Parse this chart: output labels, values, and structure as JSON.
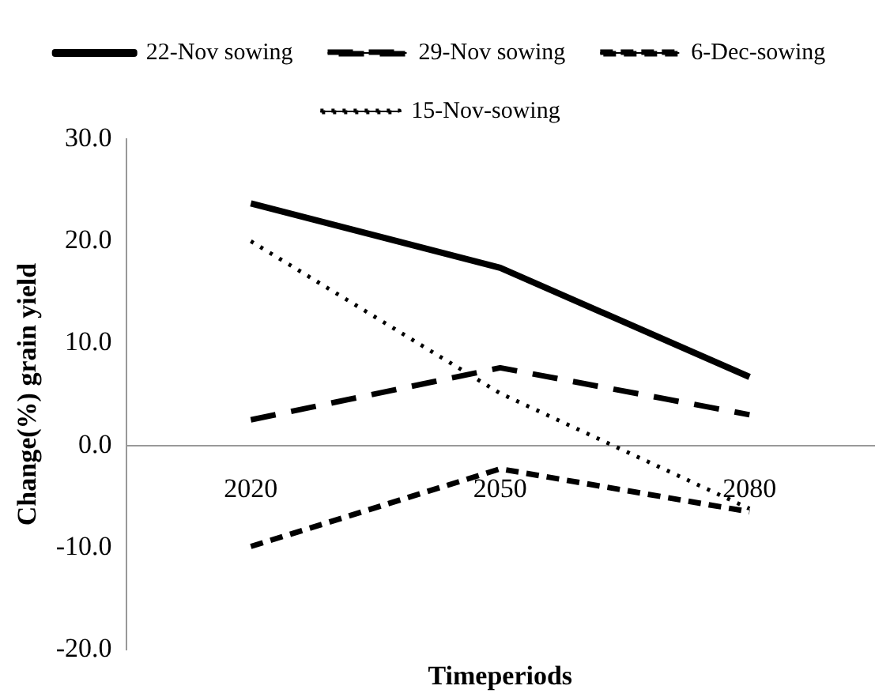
{
  "chart_data": {
    "type": "line",
    "xlabel": "Timeperiods",
    "ylabel": "Change(%) grain yield",
    "categories": [
      "2020",
      "2050",
      "2080"
    ],
    "series": [
      {
        "name": "22-Nov sowing",
        "color": "#000000",
        "line_style": "solid",
        "values": [
          23.7,
          17.4,
          6.7
        ]
      },
      {
        "name": "29-Nov sowing",
        "color": "#000000",
        "line_style": "dashed",
        "values": [
          2.5,
          7.6,
          3.0
        ]
      },
      {
        "name": "6-Dec-sowing",
        "color": "#000000",
        "line_style": "dashed-short",
        "values": [
          -9.9,
          -2.3,
          -6.5
        ]
      },
      {
        "name": "15-Nov-sowing",
        "color": "#000000",
        "line_style": "dotted",
        "values": [
          20.0,
          5.1,
          -6.2
        ]
      }
    ],
    "ylim": [
      -20,
      30
    ],
    "yticks": [
      {
        "value": -20,
        "label": "-20.0"
      },
      {
        "value": -10,
        "label": "-10.0"
      },
      {
        "value": 0,
        "label": "0.0"
      },
      {
        "value": 10,
        "label": "10.0"
      },
      {
        "value": 20,
        "label": "20.0"
      },
      {
        "value": 30,
        "label": "30.0"
      }
    ],
    "grid": false,
    "legend": "top",
    "marker": "none"
  }
}
